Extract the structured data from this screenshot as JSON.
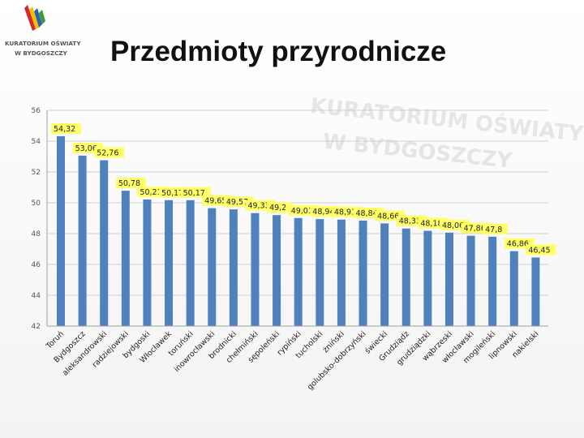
{
  "logo": {
    "icon": "kuratorium-book-logo-icon",
    "line1": "KURATORIUM OŚWIATY",
    "line2": "W BYDGOSZCZY",
    "colors": [
      "#d42a2a",
      "#f2c200",
      "#2f5fae",
      "#3a9a3a"
    ]
  },
  "watermark": {
    "line1": "KURATORIUM OŚWIATY",
    "line2": "W BYDGOSZCZY"
  },
  "slide": {
    "title": "Przedmioty przyrodnicze"
  },
  "chart_data": {
    "type": "bar",
    "title": "",
    "xlabel": "",
    "ylabel": "",
    "ylim": [
      42,
      56
    ],
    "yticks": [
      42,
      44,
      46,
      48,
      50,
      52,
      54,
      56
    ],
    "grid": true,
    "bar_color": "#4f81bd",
    "label_bg": "#ffff66",
    "categories": [
      "Toruń",
      "Bydgoszcz",
      "aleksandrowski",
      "radziejowski",
      "bydgoski",
      "Włocławek",
      "toruński",
      "inowrocławski",
      "brodnicki",
      "chełmiński",
      "sępoleński",
      "rypiński",
      "tucholski",
      "żniński",
      "golubsko-dobrzyński",
      "świecki",
      "Grudziądz",
      "grudziądzki",
      "wąbrzeski",
      "włocławski",
      "mogileński",
      "lipnowski",
      "nakielski"
    ],
    "values": [
      54.32,
      53.06,
      52.76,
      50.78,
      50.21,
      50.17,
      50.17,
      49.65,
      49.57,
      49.33,
      49.2,
      49.01,
      48.94,
      48.91,
      48.84,
      48.66,
      48.33,
      48.18,
      48.06,
      47.86,
      47.8,
      46.86,
      46.45
    ],
    "value_labels": [
      "54,32",
      "53,06",
      "52,76",
      "50,78",
      "50,21",
      "50,17",
      "50,17",
      "49,65",
      "49,57",
      "49,33",
      "49,2",
      "49,01",
      "48,94",
      "48,91",
      "48,84",
      "48,66",
      "48,33",
      "48,18",
      "48,06",
      "47,86",
      "47,8",
      "46,86",
      "46,45"
    ],
    "tick_labels": [
      "42",
      "44",
      "46",
      "48",
      "50",
      "52",
      "54",
      "56"
    ]
  }
}
